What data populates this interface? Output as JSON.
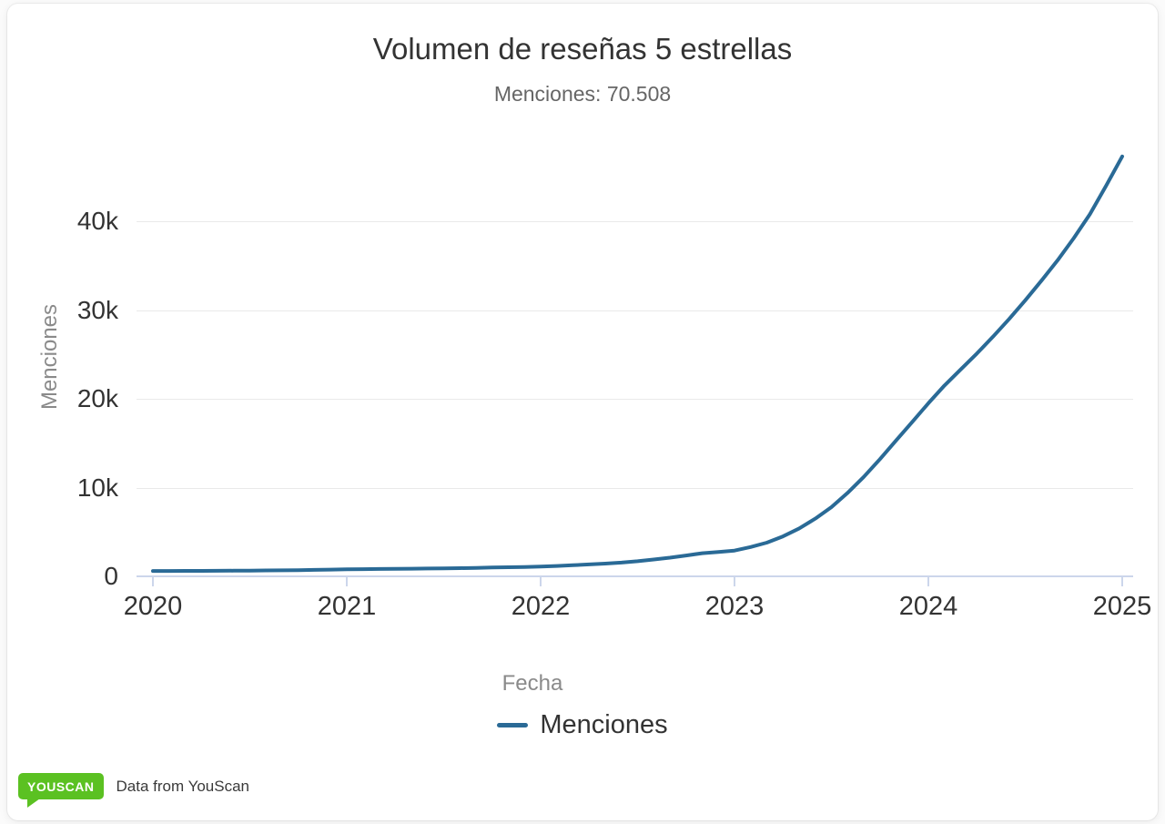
{
  "card": {
    "title": "Volumen de reseñas 5 estrellas",
    "subtitle": "Menciones: 70.508"
  },
  "chart_data": {
    "type": "line",
    "title": "Volumen de reseñas 5 estrellas",
    "subtitle": "Menciones: 70.508",
    "total_mentions": "70.508",
    "xlabel": "Fecha",
    "ylabel": "Menciones",
    "legend_position": "bottom-center",
    "grid": "horizontal-only",
    "xlim": [
      2020,
      2025.15
    ],
    "ylim": [
      0,
      48000
    ],
    "x_ticks": [
      {
        "value": 2020,
        "label": "2020"
      },
      {
        "value": 2021,
        "label": "2021"
      },
      {
        "value": 2022,
        "label": "2022"
      },
      {
        "value": 2023,
        "label": "2023"
      },
      {
        "value": 2024,
        "label": "2024"
      },
      {
        "value": 2025,
        "label": "2025"
      }
    ],
    "y_ticks": [
      {
        "value": 0,
        "label": "0"
      },
      {
        "value": 10000,
        "label": "10k"
      },
      {
        "value": 20000,
        "label": "20k"
      },
      {
        "value": 30000,
        "label": "30k"
      },
      {
        "value": 40000,
        "label": "40k"
      }
    ],
    "series": [
      {
        "name": "Menciones",
        "color": "#2a6a96",
        "start_year": 2020,
        "interval_months": 1,
        "values": [
          600,
          610,
          615,
          620,
          630,
          640,
          650,
          665,
          680,
          700,
          730,
          760,
          800,
          815,
          830,
          845,
          860,
          880,
          900,
          925,
          950,
          990,
          1030,
          1060,
          1100,
          1170,
          1250,
          1340,
          1440,
          1550,
          1700,
          1900,
          2100,
          2350,
          2600,
          2750,
          2900,
          3300,
          3800,
          4500,
          5400,
          6500,
          7800,
          9400,
          11200,
          13200,
          15300,
          17400,
          19500,
          21500,
          23300,
          25100,
          27000,
          29000,
          31100,
          33300,
          35600,
          38100,
          40800,
          44000,
          47300
        ]
      }
    ]
  },
  "footer": {
    "logo_text": "YOUSCAN",
    "attribution": "Data from YouScan"
  },
  "colors": {
    "line": "#2a6a96",
    "grid": "#e9e9e9",
    "axis": "#ccd6eb",
    "title": "#333333",
    "subtitle": "#666666",
    "axis_title": "#8a8a8a",
    "logo_green": "#5bc122"
  }
}
